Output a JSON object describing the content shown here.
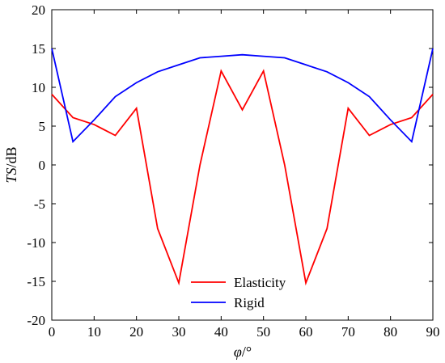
{
  "chart_data": {
    "type": "line",
    "title": "",
    "xlabel_main": "φ",
    "xlabel_unit": "/°",
    "ylabel_main": "TS",
    "ylabel_unit": "/dB",
    "xlim": [
      0,
      90
    ],
    "ylim": [
      -20,
      20
    ],
    "x_ticks": [
      0,
      10,
      20,
      30,
      40,
      50,
      60,
      70,
      80,
      90
    ],
    "y_ticks": [
      -20,
      -15,
      -10,
      -5,
      0,
      5,
      10,
      15,
      20
    ],
    "grid": false,
    "legend_position": "bottom-center",
    "x": [
      0,
      5,
      10,
      15,
      20,
      25,
      30,
      35,
      40,
      45,
      50,
      55,
      60,
      65,
      70,
      75,
      80,
      85,
      90
    ],
    "series": [
      {
        "name": "Elasticity",
        "color": "#ff0000",
        "values": [
          9.1,
          6.1,
          5.2,
          3.8,
          7.3,
          -8.2,
          -15.2,
          0.0,
          12.1,
          7.1,
          12.1,
          0.0,
          -15.2,
          -8.2,
          7.3,
          3.8,
          5.2,
          6.1,
          9.1
        ]
      },
      {
        "name": "Rigid",
        "color": "#0000ff",
        "values": [
          15.0,
          3.0,
          5.8,
          8.8,
          10.6,
          12.0,
          12.9,
          13.8,
          14.0,
          14.2,
          14.0,
          13.8,
          12.9,
          12.0,
          10.6,
          8.8,
          5.8,
          3.0,
          15.0
        ]
      }
    ]
  }
}
